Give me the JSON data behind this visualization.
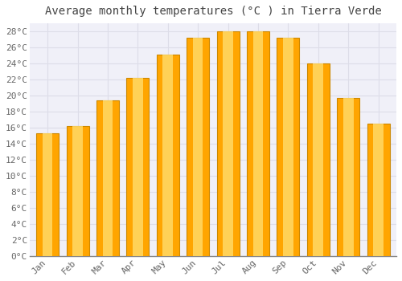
{
  "title": "Average monthly temperatures (°C ) in Tierra Verde",
  "months": [
    "Jan",
    "Feb",
    "Mar",
    "Apr",
    "May",
    "Jun",
    "Jul",
    "Aug",
    "Sep",
    "Oct",
    "Nov",
    "Dec"
  ],
  "values": [
    15.3,
    16.2,
    19.4,
    22.2,
    25.1,
    27.2,
    28.0,
    28.0,
    27.2,
    24.0,
    19.7,
    16.5
  ],
  "bar_color_face": "#FFA500",
  "bar_color_light": "#FFD966",
  "bar_edge_color": "#CC8800",
  "background_color": "#FFFFFF",
  "plot_bg_color": "#F0F0F8",
  "grid_color": "#DDDDE8",
  "ylim": [
    0,
    29
  ],
  "yticks": [
    0,
    2,
    4,
    6,
    8,
    10,
    12,
    14,
    16,
    18,
    20,
    22,
    24,
    26,
    28
  ],
  "title_fontsize": 10,
  "tick_fontsize": 8,
  "title_color": "#444444",
  "tick_color": "#666666"
}
